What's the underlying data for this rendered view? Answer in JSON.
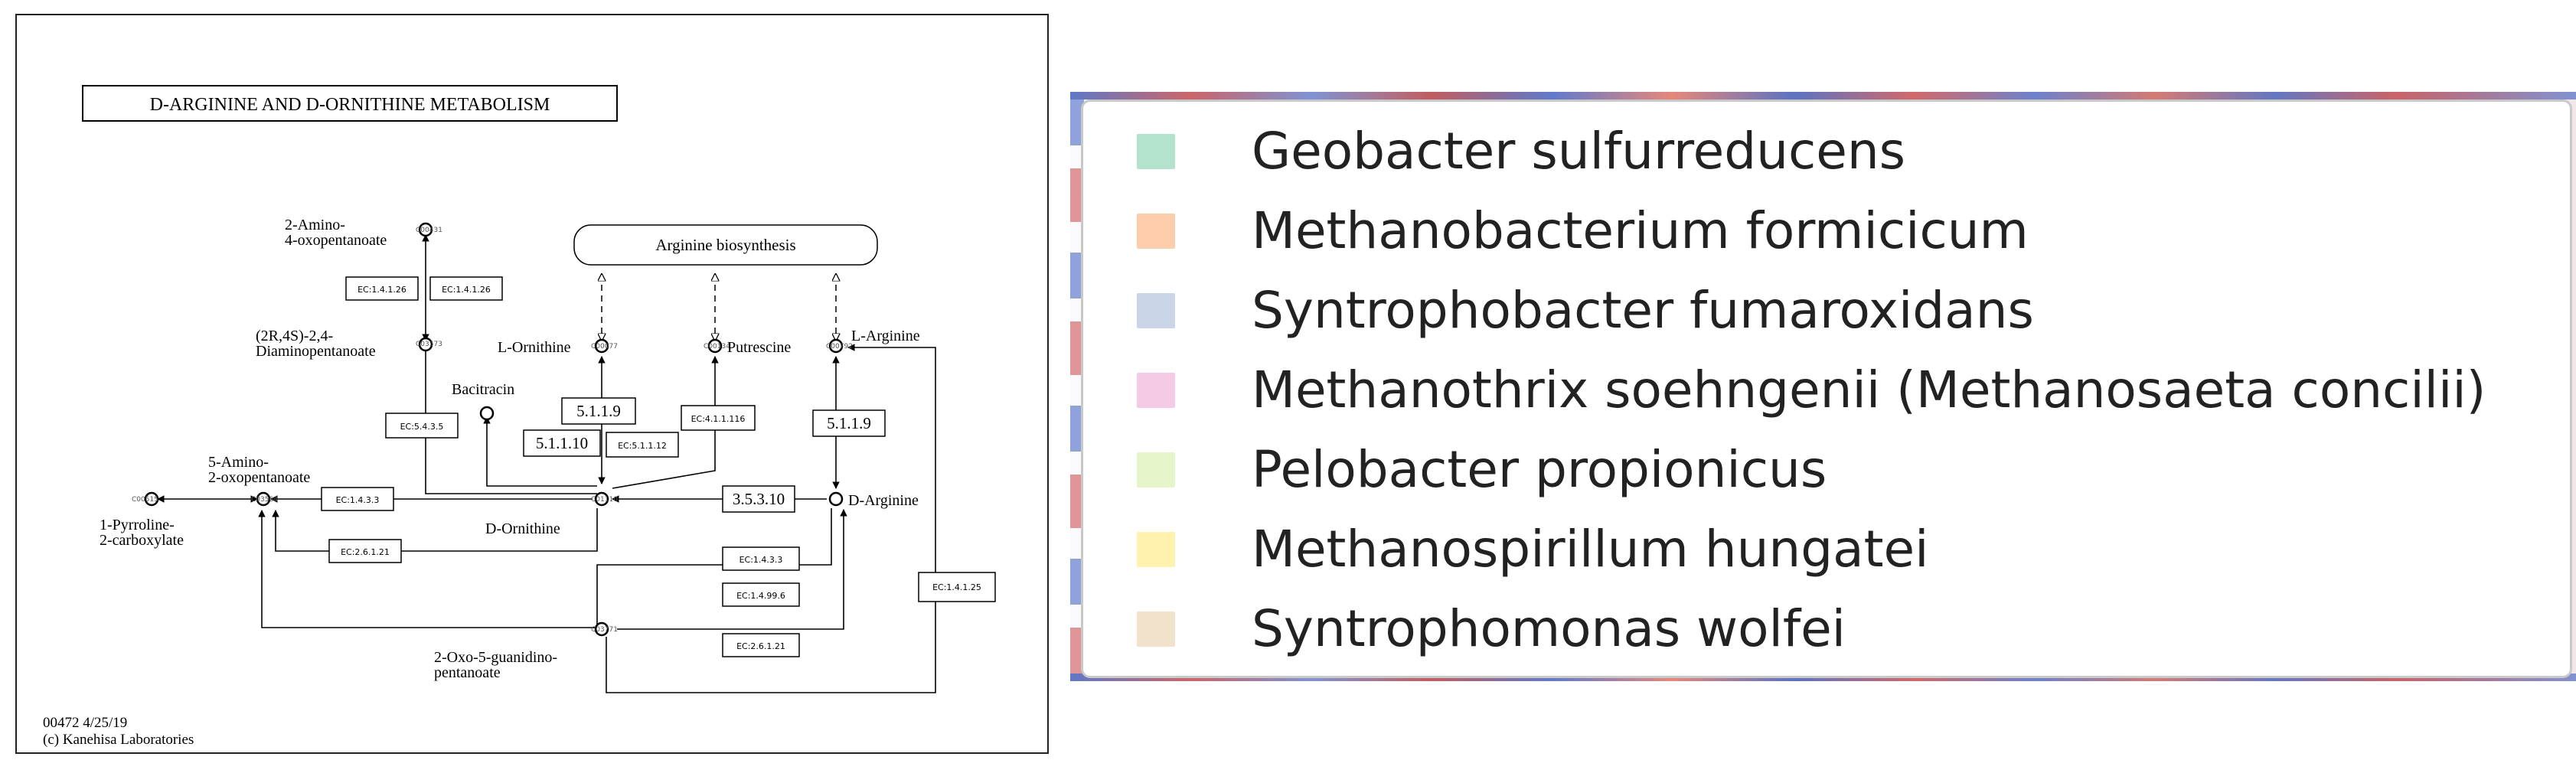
{
  "pathway": {
    "title": "D-ARGININE AND D-ORNITHINE METABOLISM",
    "map_ref": "00472 4/25/19",
    "credit": "(c) Kanehisa Laboratories",
    "linked_map": "Arginine biosynthesis",
    "compounds": {
      "amino_oxopentanoate_1": "2-Amino-",
      "amino_oxopentanoate_2": "4-oxopentanoate",
      "diaminopentanoate_1": "(2R,4S)-2,4-",
      "diaminopentanoate_2": "Diaminopentanoate",
      "bacitracin": "Bacitracin",
      "l_ornithine": "L-Ornithine",
      "putrescine": "Putrescine",
      "l_arginine": "L-Arginine",
      "amino_oxopentanoate5_1": "5-Amino-",
      "amino_oxopentanoate5_2": "2-oxopentanoate",
      "pyrroline_1": "1-Pyrroline-",
      "pyrroline_2": "2-carboxylate",
      "d_ornithine": "D-Ornithine",
      "d_arginine": "D-Arginine",
      "oxo_guanidino_1": "2-Oxo-5-guanidino-",
      "oxo_guanidino_2": "pentanoate"
    },
    "compound_ids": {
      "c1": "C00431",
      "c2": "C03573",
      "c3": "C00077",
      "c4": "C00134",
      "c5": "C00792",
      "c6": "C01110",
      "c7": "C03564",
      "c8": "C00515",
      "c9": "C03771"
    },
    "enzymes": {
      "e1": "EC:1.4.1.26",
      "e2": "EC:1.4.1.26",
      "e3": "EC:5.4.3.5",
      "e4": "5.1.1.9",
      "e5": "5.1.1.10",
      "e6": "EC:5.1.1.12",
      "e7": "EC:4.1.1.116",
      "e8": "5.1.1.9",
      "e9": "EC:1.4.3.3",
      "e10": "3.5.3.10",
      "e11": "EC:2.6.1.21",
      "e12": "EC:1.4.3.3",
      "e13": "EC:1.4.99.6",
      "e14": "EC:2.6.1.21",
      "e15": "EC:1.4.1.25"
    }
  },
  "legend": {
    "items": [
      {
        "label": "Geobacter sulfurreducens",
        "color": "#b3e2cd"
      },
      {
        "label": "Methanobacterium formicicum",
        "color": "#fdcdac"
      },
      {
        "label": "Syntrophobacter fumaroxidans",
        "color": "#cbd5e8"
      },
      {
        "label": "Methanothrix soehngenii (Methanosaeta concilii)",
        "color": "#f4cae4"
      },
      {
        "label": "Pelobacter propionicus",
        "color": "#e6f5c9"
      },
      {
        "label": "Methanospirillum hungatei",
        "color": "#fff2ae"
      },
      {
        "label": "Syntrophomonas wolfei",
        "color": "#f1e2cc"
      }
    ]
  }
}
